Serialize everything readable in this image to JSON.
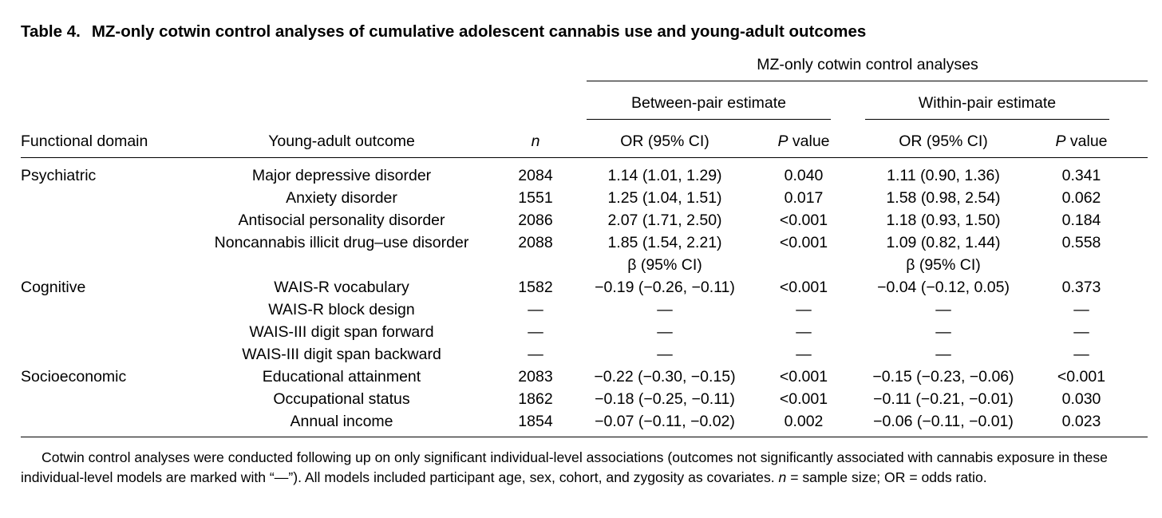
{
  "table": {
    "label": "Table 4.",
    "title": "MZ-only cotwin control analyses of cumulative adolescent cannabis use and young-adult outcomes",
    "spanner": "MZ-only cotwin control analyses",
    "between_header": "Between-pair estimate",
    "within_header": "Within-pair estimate",
    "columns": {
      "domain": "Functional domain",
      "outcome": "Young-adult outcome",
      "n": "n",
      "or_ci": "OR (95% CI)",
      "p_italic": "P",
      "p_rest": " value"
    },
    "beta_label": "β (95% CI)",
    "rows": [
      {
        "domain": "Psychiatric",
        "outcome": "Major depressive disorder",
        "n": "2084",
        "b_est": "1.14 (1.01, 1.29)",
        "b_p": "0.040",
        "w_est": "1.11 (0.90, 1.36)",
        "w_p": "0.341"
      },
      {
        "domain": "",
        "outcome": "Anxiety disorder",
        "n": "1551",
        "b_est": "1.25 (1.04, 1.51)",
        "b_p": "0.017",
        "w_est": "1.58 (0.98, 2.54)",
        "w_p": "0.062"
      },
      {
        "domain": "",
        "outcome": "Antisocial personality disorder",
        "n": "2086",
        "b_est": "2.07 (1.71, 2.50)",
        "b_p": "<0.001",
        "w_est": "1.18 (0.93, 1.50)",
        "w_p": "0.184"
      },
      {
        "domain": "",
        "outcome": "Noncannabis illicit drug–use disorder",
        "n": "2088",
        "b_est": "1.85 (1.54, 2.21)",
        "b_p": "<0.001",
        "w_est": "1.09 (0.82, 1.44)",
        "w_p": "0.558"
      },
      {
        "domain": "Cognitive",
        "outcome": "WAIS-R vocabulary",
        "n": "1582",
        "b_est": "−0.19 (−0.26, −0.11)",
        "b_p": "<0.001",
        "w_est": "−0.04 (−0.12, 0.05)",
        "w_p": "0.373"
      },
      {
        "domain": "",
        "outcome": "WAIS-R block design",
        "n": "—",
        "b_est": "—",
        "b_p": "—",
        "w_est": "—",
        "w_p": "—"
      },
      {
        "domain": "",
        "outcome": "WAIS-III digit span forward",
        "n": "—",
        "b_est": "—",
        "b_p": "—",
        "w_est": "—",
        "w_p": "—"
      },
      {
        "domain": "",
        "outcome": "WAIS-III digit span backward",
        "n": "—",
        "b_est": "—",
        "b_p": "—",
        "w_est": "—",
        "w_p": "—"
      },
      {
        "domain": "Socioeconomic",
        "outcome": "Educational attainment",
        "n": "2083",
        "b_est": "−0.22 (−0.30, −0.15)",
        "b_p": "<0.001",
        "w_est": "−0.15 (−0.23, −0.06)",
        "w_p": "<0.001"
      },
      {
        "domain": "",
        "outcome": "Occupational status",
        "n": "1862",
        "b_est": "−0.18 (−0.25, −0.11)",
        "b_p": "<0.001",
        "w_est": "−0.11 (−0.21, −0.01)",
        "w_p": "0.030"
      },
      {
        "domain": "",
        "outcome": "Annual income",
        "n": "1854",
        "b_est": "−0.07 (−0.11, −0.02)",
        "b_p": "0.002",
        "w_est": "−0.06 (−0.11, −0.01)",
        "w_p": "0.023"
      }
    ],
    "footnote": {
      "part1": "Cotwin control analyses were conducted following up on only significant individual-level associations (outcomes not significantly associated with cannabis exposure in these individual-level models are marked with “—”). All models included participant age, sex, cohort, and zygosity as covariates. ",
      "n_italic": "n",
      "part2": " = sample size; OR = odds ratio."
    }
  }
}
